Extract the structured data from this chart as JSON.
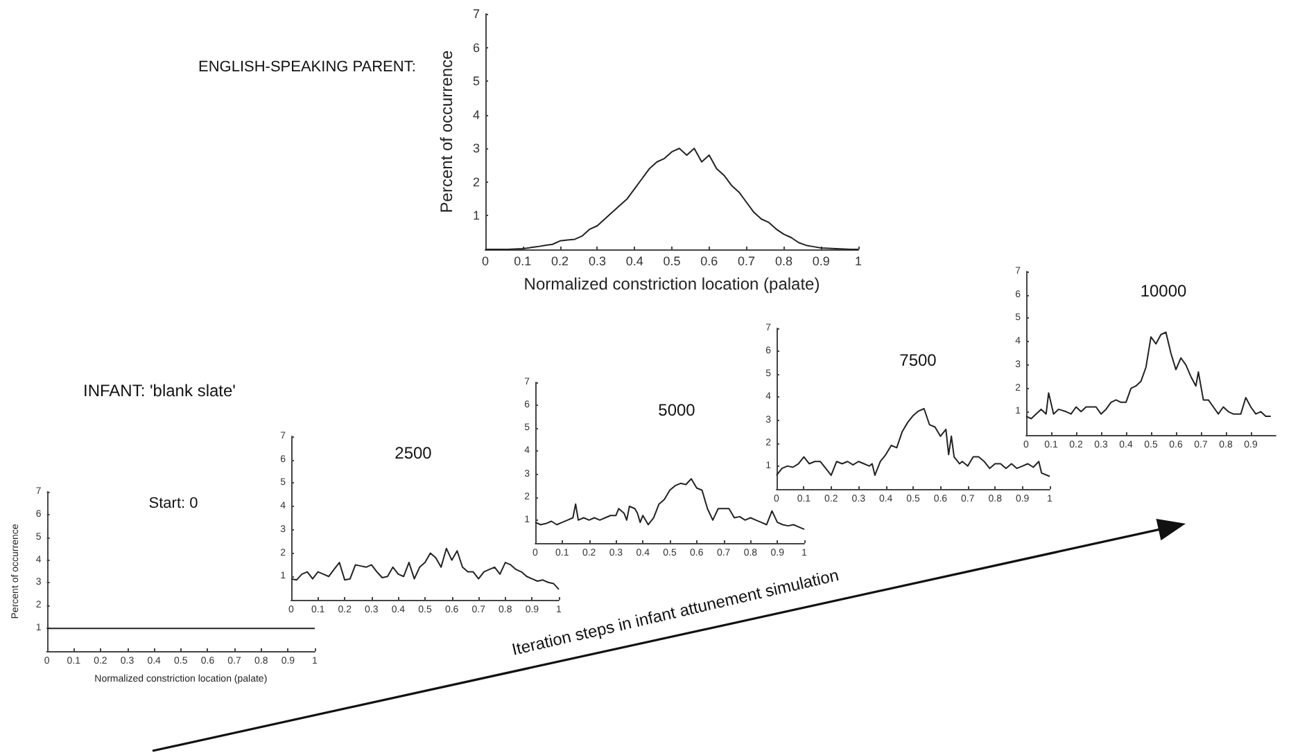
{
  "chart_data": [
    {
      "type": "line",
      "title": "ENGLISH-SPEAKING PARENT:",
      "xlabel": "Normalized constriction location (palate)",
      "ylabel": "Percent of occurrence",
      "x": [
        0,
        0.02,
        0.04,
        0.06,
        0.08,
        0.1,
        0.12,
        0.14,
        0.16,
        0.18,
        0.2,
        0.22,
        0.24,
        0.26,
        0.28,
        0.3,
        0.32,
        0.34,
        0.36,
        0.38,
        0.4,
        0.42,
        0.44,
        0.46,
        0.48,
        0.5,
        0.52,
        0.54,
        0.56,
        0.58,
        0.6,
        0.62,
        0.64,
        0.66,
        0.68,
        0.7,
        0.72,
        0.74,
        0.76,
        0.78,
        0.8,
        0.82,
        0.84,
        0.86,
        0.88,
        0.9,
        0.92,
        0.94,
        0.96,
        0.98,
        1
      ],
      "series": [
        {
          "color": "#222222",
          "values": [
            0,
            0,
            0,
            0,
            0.01,
            0.02,
            0.05,
            0.08,
            0.12,
            0.15,
            0.25,
            0.28,
            0.3,
            0.4,
            0.6,
            0.7,
            0.9,
            1.1,
            1.3,
            1.5,
            1.8,
            2.1,
            2.4,
            2.6,
            2.7,
            2.9,
            3.0,
            2.8,
            3.0,
            2.6,
            2.8,
            2.4,
            2.2,
            1.9,
            1.7,
            1.4,
            1.1,
            0.9,
            0.8,
            0.6,
            0.45,
            0.35,
            0.2,
            0.12,
            0.08,
            0.04,
            0.03,
            0.02,
            0.01,
            0,
            0
          ]
        }
      ],
      "xlim": [
        0,
        1
      ],
      "xticks": [
        0,
        0.1,
        0.2,
        0.3,
        0.4,
        0.5,
        0.6,
        0.7,
        0.8,
        0.9,
        1
      ],
      "ylim": [
        0,
        7
      ],
      "yticks": [
        1,
        2,
        3,
        4,
        5,
        6,
        7
      ]
    },
    {
      "type": "line",
      "title": "Start: 0",
      "xlabel": "Normalized constriction location (palate)",
      "ylabel": "Percent of occurrence",
      "annotations": [
        "INFANT: 'blank slate'",
        "Iteration steps in infant attunement simulation"
      ],
      "x": [
        0,
        1
      ],
      "series": [
        {
          "color": "#222222",
          "values": [
            1,
            1
          ]
        }
      ],
      "xlim": [
        0,
        1
      ],
      "xticks": [
        0,
        0.1,
        0.2,
        0.3,
        0.4,
        0.5,
        0.6,
        0.7,
        0.8,
        0.9,
        1
      ],
      "ylim": [
        0,
        7
      ],
      "yticks": [
        1,
        2,
        3,
        4,
        5,
        6,
        7
      ]
    },
    {
      "type": "line",
      "title": "2500",
      "x": [
        0,
        0.02,
        0.04,
        0.06,
        0.08,
        0.1,
        0.12,
        0.14,
        0.16,
        0.18,
        0.2,
        0.22,
        0.24,
        0.26,
        0.28,
        0.3,
        0.32,
        0.34,
        0.36,
        0.38,
        0.4,
        0.42,
        0.44,
        0.46,
        0.48,
        0.5,
        0.52,
        0.54,
        0.56,
        0.58,
        0.6,
        0.62,
        0.64,
        0.66,
        0.68,
        0.7,
        0.72,
        0.74,
        0.76,
        0.78,
        0.8,
        0.82,
        0.84,
        0.86,
        0.88,
        0.9,
        0.92,
        0.94,
        0.96,
        0.98,
        1
      ],
      "series": [
        {
          "color": "#222222",
          "values": [
            0.9,
            0.85,
            1.1,
            1.2,
            0.9,
            1.2,
            1.1,
            1.0,
            1.3,
            1.6,
            0.85,
            0.9,
            1.5,
            1.45,
            1.4,
            1.5,
            1.2,
            0.95,
            1.0,
            1.4,
            1.1,
            1.0,
            1.6,
            0.9,
            1.4,
            1.6,
            2.0,
            1.8,
            1.4,
            2.2,
            1.7,
            2.1,
            1.4,
            1.2,
            1.2,
            0.9,
            1.2,
            1.3,
            1.4,
            1.1,
            1.6,
            1.5,
            1.3,
            1.2,
            1.0,
            0.9,
            0.8,
            0.85,
            0.75,
            0.7,
            0.45
          ]
        }
      ],
      "xlim": [
        0,
        1
      ],
      "xticks": [
        0,
        0.1,
        0.2,
        0.3,
        0.4,
        0.5,
        0.6,
        0.7,
        0.8,
        0.9,
        1
      ],
      "ylim": [
        0,
        7
      ],
      "yticks": [
        1,
        2,
        3,
        4,
        5,
        6,
        7
      ]
    },
    {
      "type": "line",
      "title": "5000",
      "x": [
        0,
        0.02,
        0.04,
        0.06,
        0.08,
        0.1,
        0.12,
        0.14,
        0.15,
        0.16,
        0.18,
        0.2,
        0.22,
        0.24,
        0.26,
        0.28,
        0.3,
        0.31,
        0.33,
        0.34,
        0.35,
        0.37,
        0.38,
        0.39,
        0.4,
        0.42,
        0.44,
        0.46,
        0.48,
        0.5,
        0.52,
        0.54,
        0.56,
        0.58,
        0.6,
        0.62,
        0.64,
        0.66,
        0.68,
        0.7,
        0.72,
        0.74,
        0.76,
        0.78,
        0.8,
        0.82,
        0.84,
        0.86,
        0.88,
        0.9,
        0.92,
        0.94,
        0.96,
        0.98,
        1
      ],
      "series": [
        {
          "color": "#222222",
          "values": [
            0.9,
            0.8,
            0.85,
            0.95,
            0.8,
            0.9,
            1.0,
            1.1,
            1.7,
            1.0,
            1.1,
            1.0,
            1.1,
            1.0,
            1.1,
            1.2,
            1.2,
            1.5,
            1.3,
            1.0,
            1.6,
            1.5,
            1.3,
            0.9,
            1.2,
            0.8,
            1.1,
            1.7,
            1.9,
            2.3,
            2.5,
            2.6,
            2.55,
            2.8,
            2.4,
            2.3,
            1.5,
            1.0,
            1.5,
            1.5,
            1.5,
            1.1,
            1.15,
            1.0,
            1.1,
            1.0,
            0.9,
            0.8,
            1.4,
            0.9,
            0.8,
            0.75,
            0.8,
            0.7,
            0.6
          ]
        }
      ],
      "xlim": [
        0,
        1
      ],
      "xticks": [
        0,
        0.1,
        0.2,
        0.3,
        0.4,
        0.5,
        0.6,
        0.7,
        0.8,
        0.9,
        1
      ],
      "ylim": [
        0,
        7
      ],
      "yticks": [
        1,
        2,
        3,
        4,
        5,
        6,
        7
      ]
    },
    {
      "type": "line",
      "title": "7500",
      "x": [
        0,
        0.02,
        0.04,
        0.06,
        0.08,
        0.1,
        0.12,
        0.14,
        0.16,
        0.18,
        0.2,
        0.22,
        0.24,
        0.26,
        0.28,
        0.3,
        0.32,
        0.34,
        0.35,
        0.36,
        0.38,
        0.4,
        0.42,
        0.44,
        0.46,
        0.48,
        0.5,
        0.52,
        0.54,
        0.56,
        0.58,
        0.6,
        0.62,
        0.63,
        0.64,
        0.65,
        0.67,
        0.68,
        0.7,
        0.72,
        0.74,
        0.76,
        0.78,
        0.8,
        0.82,
        0.84,
        0.86,
        0.88,
        0.9,
        0.92,
        0.94,
        0.96,
        0.97,
        1
      ],
      "series": [
        {
          "color": "#222222",
          "values": [
            0.6,
            0.9,
            1.0,
            0.95,
            1.1,
            1.4,
            1.1,
            1.2,
            1.2,
            0.9,
            0.6,
            1.2,
            1.1,
            1.2,
            1.05,
            1.2,
            1.1,
            1.0,
            1.1,
            0.6,
            1.2,
            1.5,
            1.9,
            1.8,
            2.5,
            2.9,
            3.2,
            3.4,
            3.5,
            2.8,
            2.7,
            2.3,
            2.6,
            1.5,
            2.3,
            1.4,
            1.1,
            1.2,
            1.0,
            1.4,
            1.4,
            1.2,
            0.9,
            1.1,
            1.1,
            0.9,
            1.1,
            0.9,
            1.0,
            1.1,
            0.95,
            1.2,
            0.7,
            0.55
          ]
        }
      ],
      "xlim": [
        0,
        1
      ],
      "xticks": [
        0,
        0.1,
        0.2,
        0.3,
        0.4,
        0.5,
        0.6,
        0.7,
        0.8,
        0.9,
        1
      ],
      "ylim": [
        0,
        7
      ],
      "yticks": [
        1,
        2,
        3,
        4,
        5,
        6,
        7
      ]
    },
    {
      "type": "line",
      "title": "10000",
      "x": [
        0,
        0.02,
        0.04,
        0.06,
        0.08,
        0.09,
        0.11,
        0.13,
        0.16,
        0.18,
        0.2,
        0.22,
        0.24,
        0.26,
        0.28,
        0.3,
        0.32,
        0.34,
        0.36,
        0.38,
        0.4,
        0.42,
        0.44,
        0.46,
        0.48,
        0.5,
        0.52,
        0.54,
        0.56,
        0.58,
        0.6,
        0.62,
        0.64,
        0.66,
        0.68,
        0.69,
        0.71,
        0.73,
        0.75,
        0.77,
        0.79,
        0.81,
        0.83,
        0.86,
        0.88,
        0.9,
        0.92,
        0.94,
        0.96,
        0.98
      ],
      "series": [
        {
          "color": "#222222",
          "values": [
            0.8,
            0.7,
            0.9,
            1.1,
            0.9,
            1.8,
            0.9,
            1.1,
            1.0,
            0.9,
            1.2,
            1.0,
            1.2,
            1.2,
            1.2,
            0.9,
            1.1,
            1.4,
            1.5,
            1.4,
            1.4,
            2.0,
            2.1,
            2.3,
            2.9,
            4.2,
            3.9,
            4.3,
            4.4,
            3.5,
            2.8,
            3.3,
            3.0,
            2.5,
            2.1,
            2.7,
            1.5,
            1.5,
            1.2,
            0.9,
            1.2,
            1.0,
            0.9,
            0.9,
            1.6,
            1.2,
            0.9,
            1.0,
            0.8,
            0.8
          ]
        }
      ],
      "xlim": [
        0,
        1
      ],
      "xticks": [
        0,
        0.1,
        0.2,
        0.3,
        0.4,
        0.5,
        0.6,
        0.7,
        0.8,
        0.9
      ],
      "ylim": [
        0,
        7
      ],
      "yticks": [
        1,
        2,
        3,
        4,
        5,
        6,
        7
      ]
    }
  ]
}
